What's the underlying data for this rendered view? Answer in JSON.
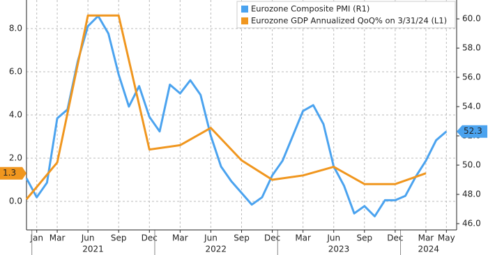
{
  "chart_data": {
    "type": "line",
    "xlim": [
      "2020-12",
      "2024-06"
    ],
    "xticks": [
      {
        "value": "2021-01",
        "label": "Jan"
      },
      {
        "value": "2021-03",
        "label": "Mar"
      },
      {
        "value": "2021-06",
        "label": "Jun"
      },
      {
        "value": "2021-09",
        "label": "Sep"
      },
      {
        "value": "2021-12",
        "label": "Dec"
      },
      {
        "value": "2022-03",
        "label": "Mar"
      },
      {
        "value": "2022-06",
        "label": "Jun"
      },
      {
        "value": "2022-09",
        "label": "Sep"
      },
      {
        "value": "2022-12",
        "label": "Dec"
      },
      {
        "value": "2023-03",
        "label": "Mar"
      },
      {
        "value": "2023-06",
        "label": "Jun"
      },
      {
        "value": "2023-09",
        "label": "Sep"
      },
      {
        "value": "2023-12",
        "label": "Dec"
      },
      {
        "value": "2024-03",
        "label": "Mar"
      },
      {
        "value": "2024-05",
        "label": "May"
      }
    ],
    "x_groups": [
      "2021",
      "2022",
      "2023",
      "2024"
    ],
    "ylim": [
      -1.32,
      9.32
    ],
    "yticks": [
      {
        "value": 0,
        "label": "0.0"
      },
      {
        "value": 2,
        "label": "2.0"
      },
      {
        "value": 4,
        "label": "4.0"
      },
      {
        "value": 6,
        "label": "6.0"
      },
      {
        "value": 8,
        "label": "8.0"
      }
    ],
    "y2lim": [
      45.57,
      61.29
    ],
    "y2ticks": [
      {
        "value": 46,
        "label": "46.0"
      },
      {
        "value": 48,
        "label": "48.0"
      },
      {
        "value": 50,
        "label": "50.0"
      },
      {
        "value": 52,
        "label": "52.0"
      },
      {
        "value": 54,
        "label": "54.0"
      },
      {
        "value": 56,
        "label": "56.0"
      },
      {
        "value": 58,
        "label": "58.0"
      },
      {
        "value": 60,
        "label": "60.0"
      }
    ],
    "grid": true,
    "legend": "top-right",
    "series": [
      {
        "name": "Eurozone Composite PMI (R1)",
        "color": "#4ba3ef",
        "axis": "y2",
        "x": [
          "2020-12",
          "2021-01",
          "2021-02",
          "2021-03",
          "2021-04",
          "2021-05",
          "2021-06",
          "2021-07",
          "2021-08",
          "2021-09",
          "2021-10",
          "2021-11",
          "2021-12",
          "2022-01",
          "2022-02",
          "2022-03",
          "2022-04",
          "2022-05",
          "2022-06",
          "2022-07",
          "2022-08",
          "2022-09",
          "2022-10",
          "2022-11",
          "2022-12",
          "2023-01",
          "2023-02",
          "2023-03",
          "2023-04",
          "2023-05",
          "2023-06",
          "2023-07",
          "2023-08",
          "2023-09",
          "2023-10",
          "2023-11",
          "2023-12",
          "2024-01",
          "2024-02",
          "2024-03",
          "2024-04",
          "2024-05"
        ],
        "values": [
          49.1,
          47.8,
          48.8,
          53.2,
          53.8,
          57.1,
          59.5,
          60.2,
          59.0,
          56.2,
          54.0,
          55.4,
          53.3,
          52.3,
          55.5,
          54.9,
          55.8,
          54.8,
          52.0,
          49.9,
          48.9,
          48.1,
          47.3,
          47.8,
          49.3,
          50.3,
          52.0,
          53.7,
          54.1,
          52.8,
          49.9,
          48.6,
          46.7,
          47.2,
          46.5,
          47.6,
          47.6,
          47.9,
          49.2,
          50.3,
          51.7,
          52.3
        ]
      },
      {
        "name": "Eurozone GDP Annualized QoQ% on 3/31/24 (L1)",
        "color": "#f0961e",
        "axis": "y",
        "x": [
          "2020-12",
          "2021-03",
          "2021-06",
          "2021-09",
          "2021-12",
          "2022-03",
          "2022-06",
          "2022-09",
          "2022-12",
          "2023-03",
          "2023-06",
          "2023-09",
          "2023-12",
          "2024-03"
        ],
        "values": [
          0.1,
          1.8,
          8.6,
          8.6,
          2.4,
          2.6,
          3.4,
          1.9,
          1.0,
          1.2,
          1.6,
          0.8,
          0.8,
          1.3
        ]
      }
    ]
  }
}
